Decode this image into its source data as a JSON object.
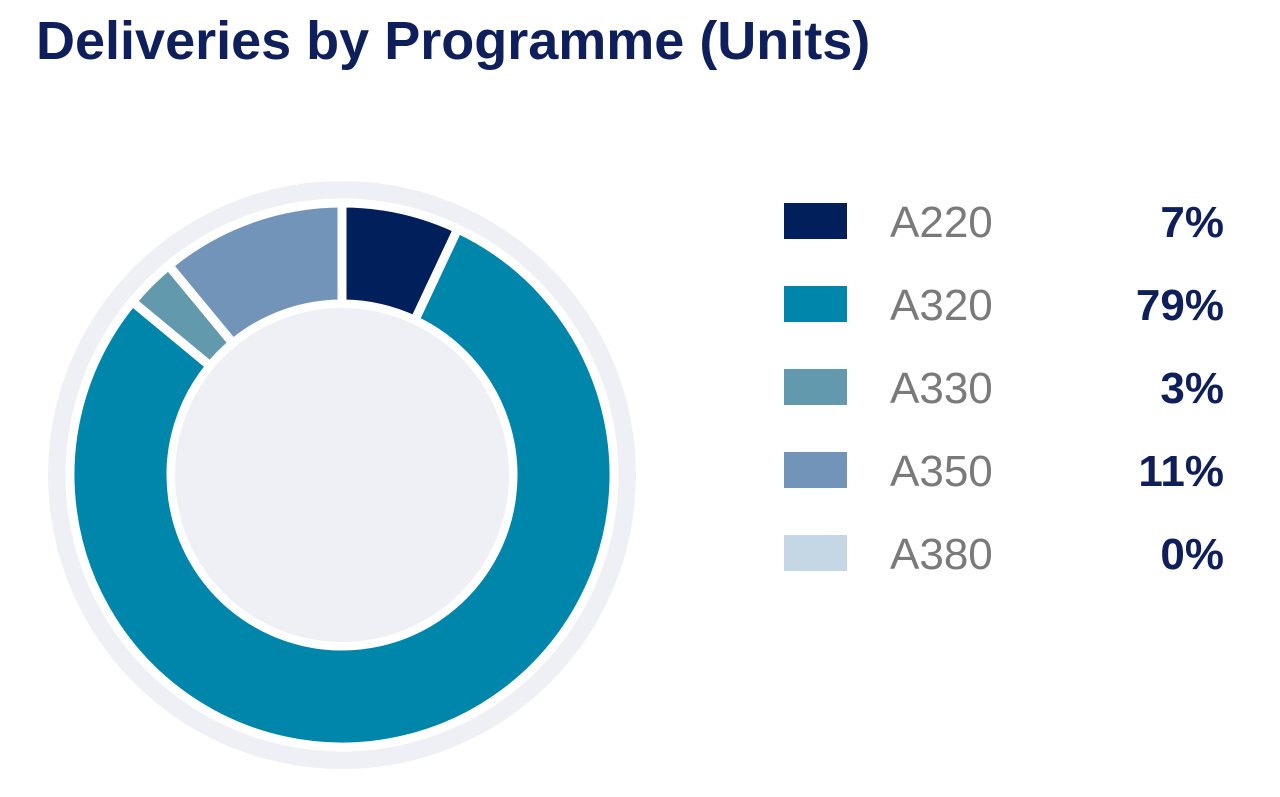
{
  "title": "Deliveries by Programme (Units)",
  "chart_data": {
    "type": "pie",
    "donut": true,
    "title": "Deliveries by Programme (Units)",
    "categories": [
      "A220",
      "A320",
      "A330",
      "A350",
      "A380"
    ],
    "values": [
      7,
      79,
      3,
      11,
      0
    ],
    "value_labels": [
      "7%",
      "79%",
      "3%",
      "11%",
      "0%"
    ],
    "unit": "%",
    "colors": [
      "#001f5b",
      "#0085ab",
      "#6399ad",
      "#7394b9",
      "#c5d7e5"
    ],
    "ring_background_color": "#eff0f5",
    "slice_separator_color": "#ffffff",
    "start_angle": "top",
    "direction": "clockwise",
    "legend_position": "right"
  }
}
